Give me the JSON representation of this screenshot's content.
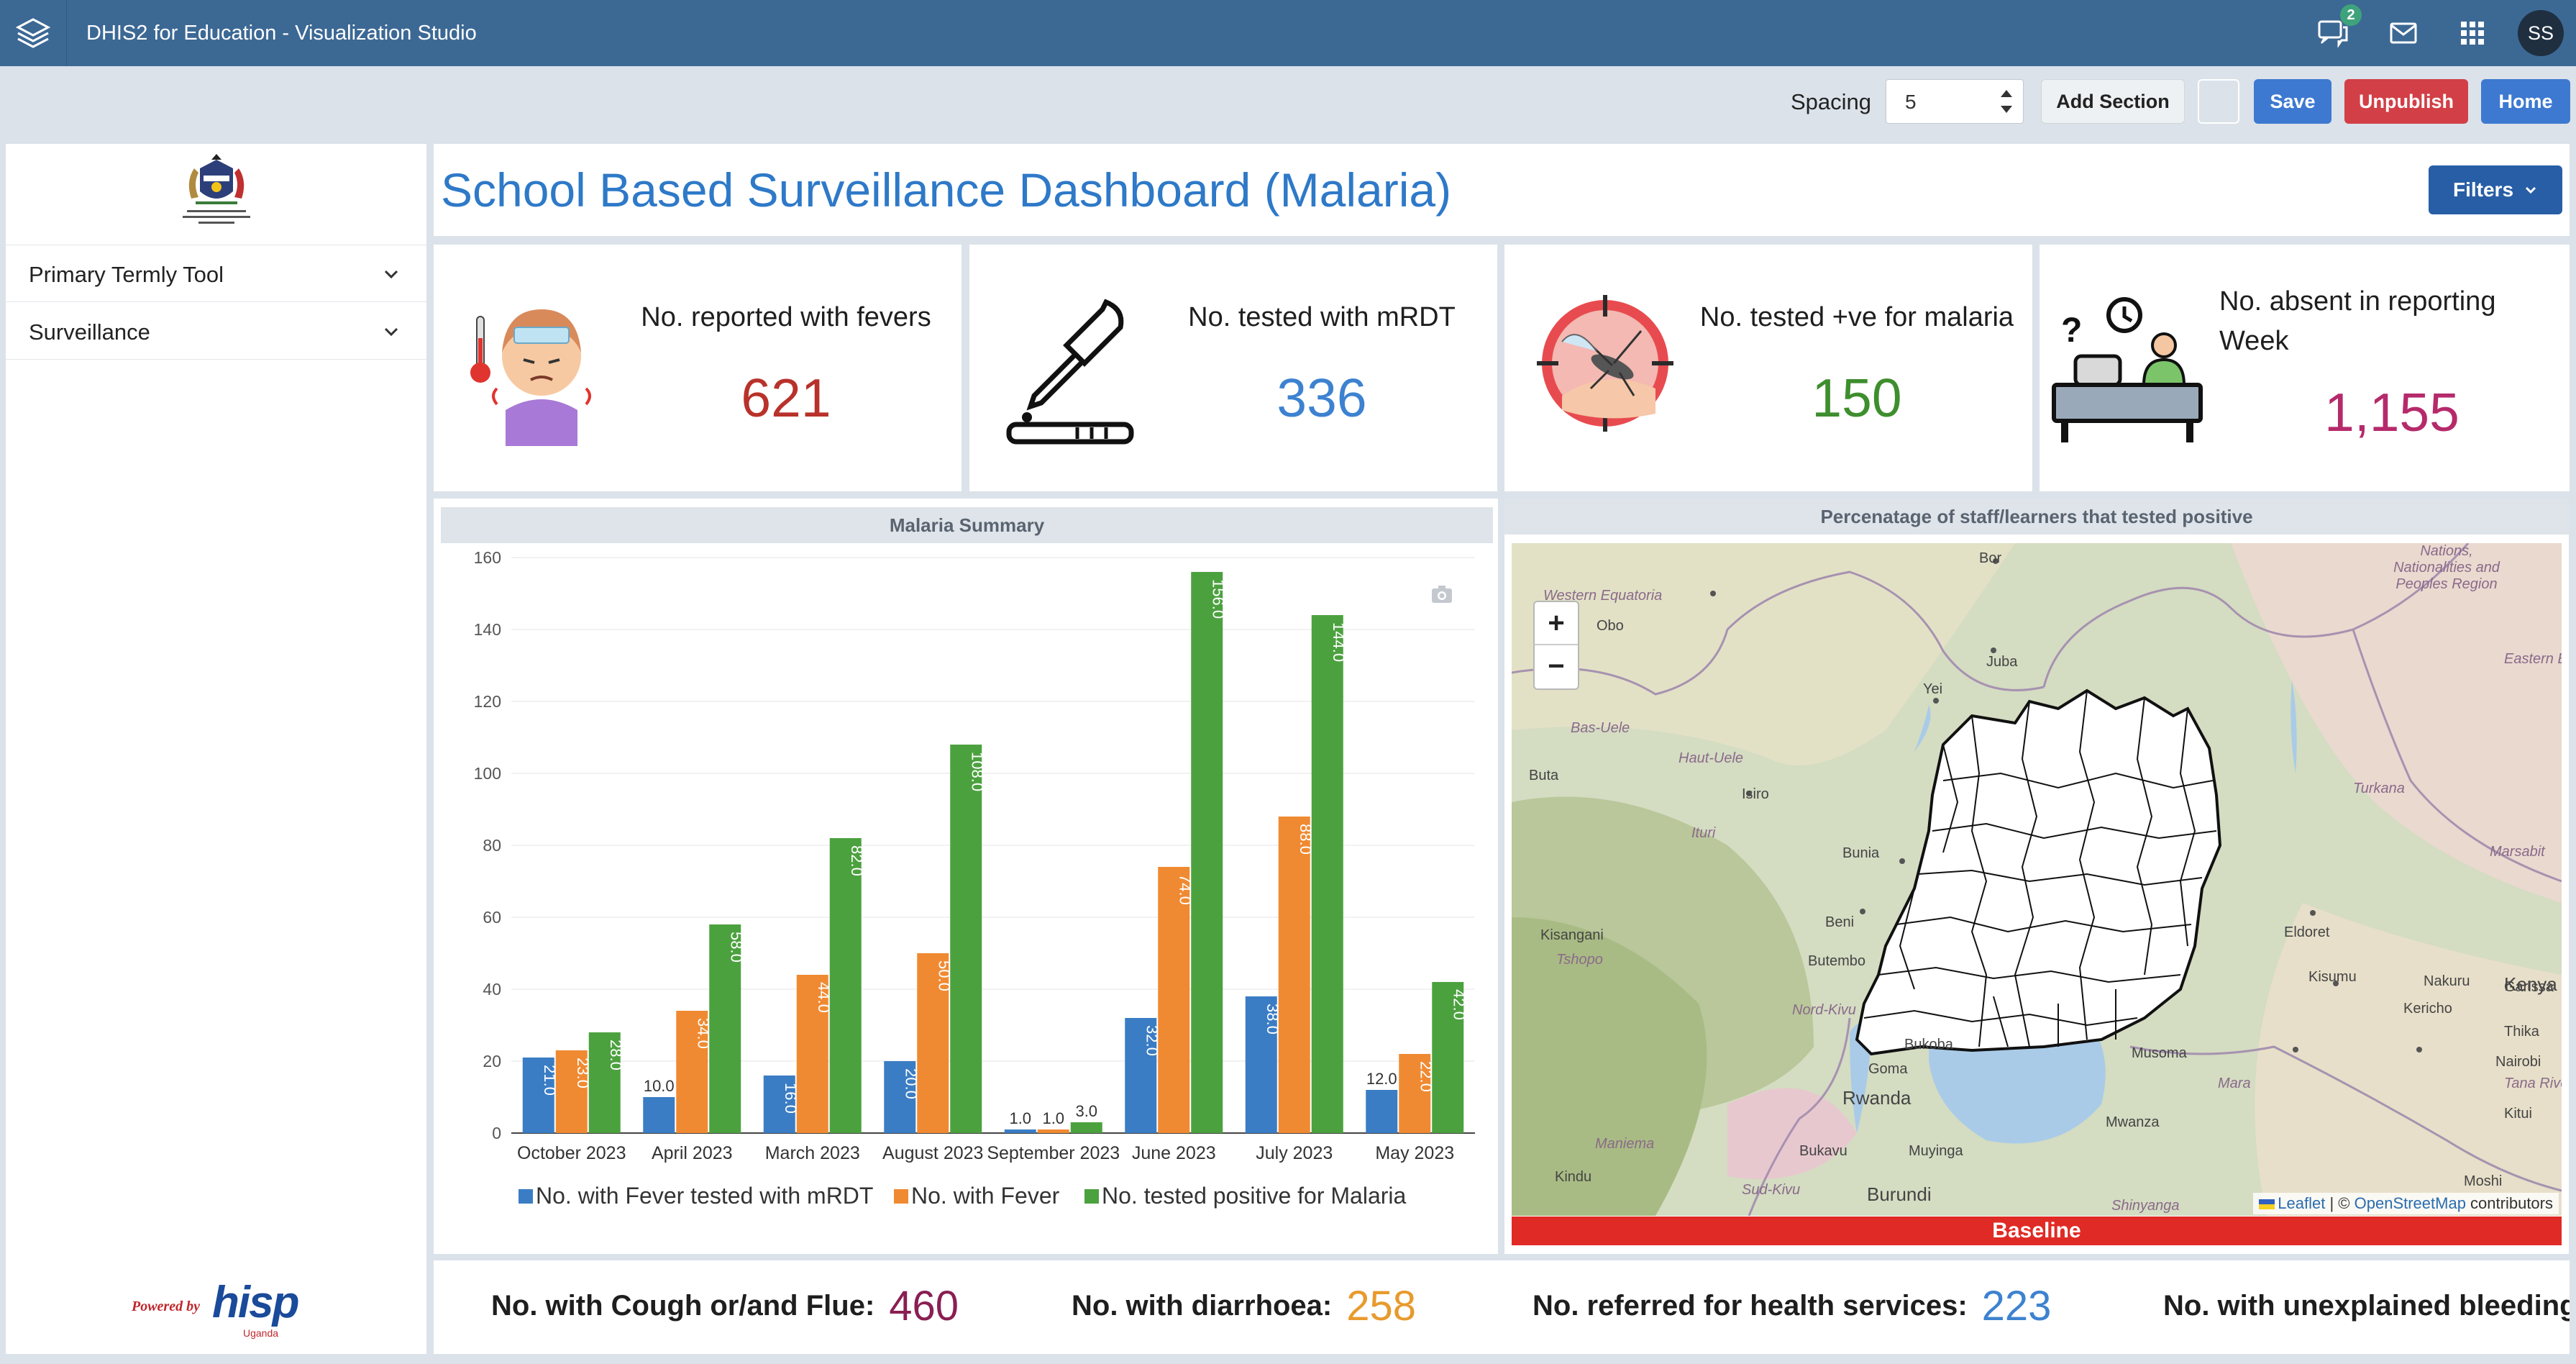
{
  "app": {
    "title": "DHIS2 for Education - Visualization Studio",
    "message_count": "2",
    "user_initials": "SS"
  },
  "toolbar": {
    "spacing_label": "Spacing",
    "spacing_value": "5",
    "add_section": "Add Section",
    "save": "Save",
    "unpublish": "Unpublish",
    "home": "Home"
  },
  "sidebar": {
    "items": [
      {
        "label": "Primary Termly Tool"
      },
      {
        "label": "Surveillance"
      }
    ],
    "powered_by": "Powered by",
    "powered_brand": "hisp",
    "powered_sub": "Uganda"
  },
  "dashboard": {
    "title": "School Based Surveillance Dashboard (Malaria)",
    "filters": "Filters"
  },
  "kpis": [
    {
      "label": "No. reported with fevers",
      "value": "621",
      "color": "#b8322b",
      "icon": "fever-child-icon"
    },
    {
      "label": "No. tested with mRDT",
      "value": "336",
      "color": "#3d82d0",
      "icon": "dropper-test-icon"
    },
    {
      "label": "No. tested +ve for malaria",
      "value": "150",
      "color": "#3e8e2e",
      "icon": "mosquito-target-icon"
    },
    {
      "label": "No. absent in reporting Week",
      "value": "1,155",
      "color": "#b52a6a",
      "icon": "empty-desk-icon"
    }
  ],
  "chart_data": {
    "type": "bar",
    "title": "Malaria Summary",
    "categories": [
      "October 2023",
      "April 2023",
      "March 2023",
      "August 2023",
      "September 2023",
      "June 2023",
      "July 2023",
      "May 2023"
    ],
    "series": [
      {
        "name": "No. with Fever tested with mRDT",
        "color": "#3a7dc4",
        "values": [
          21,
          10,
          16,
          20,
          1,
          32,
          38,
          12
        ]
      },
      {
        "name": "No. with Fever",
        "color": "#f08a32",
        "values": [
          23,
          34,
          44,
          50,
          1,
          74,
          88,
          22
        ]
      },
      {
        "name": "No. tested positive for Malaria",
        "color": "#4ca13f",
        "values": [
          28,
          58,
          82,
          108,
          3,
          156,
          144,
          42
        ]
      }
    ],
    "ylim": [
      0,
      160
    ],
    "yticks": [
      0,
      20,
      40,
      60,
      80,
      100,
      120,
      140,
      160
    ],
    "grid": true,
    "legend": "bottom"
  },
  "map": {
    "title": "Percenatage of staff/learners that tested positive",
    "zoom_in": "+",
    "zoom_out": "−",
    "attribution_leaflet": "Leaflet",
    "attribution_sep": " | © ",
    "attribution_osm": "OpenStreetMap",
    "attribution_tail": " contributors",
    "baseline": "Baseline",
    "labels": [
      {
        "text": "Bor",
        "kind": "town"
      },
      {
        "text": "Nations, Nationalities and Peoples Region",
        "kind": "region"
      },
      {
        "text": "Western Equatoria",
        "kind": "region"
      },
      {
        "text": "Obo",
        "kind": "town"
      },
      {
        "text": "Juba",
        "kind": "town"
      },
      {
        "text": "Eastern Equatoria",
        "kind": "region"
      },
      {
        "text": "Yei",
        "kind": "town"
      },
      {
        "text": "Bas-Uele",
        "kind": "region"
      },
      {
        "text": "Haut-Uele",
        "kind": "region"
      },
      {
        "text": "Buta",
        "kind": "town"
      },
      {
        "text": "Isiro",
        "kind": "town"
      },
      {
        "text": "Turkana",
        "kind": "region"
      },
      {
        "text": "Ituri",
        "kind": "region"
      },
      {
        "text": "Bunia",
        "kind": "town"
      },
      {
        "text": "Marsabit",
        "kind": "region"
      },
      {
        "text": "Kisangani",
        "kind": "town"
      },
      {
        "text": "Tshopo",
        "kind": "region"
      },
      {
        "text": "Beni",
        "kind": "town"
      },
      {
        "text": "Eldoret",
        "kind": "town"
      },
      {
        "text": "Butembo",
        "kind": "town"
      },
      {
        "text": "Kisumu",
        "kind": "town"
      },
      {
        "text": "Nakuru",
        "kind": "town"
      },
      {
        "text": "Kenya",
        "kind": "country"
      },
      {
        "text": "Garissa",
        "kind": "town"
      },
      {
        "text": "Nord-Kivu",
        "kind": "region"
      },
      {
        "text": "Kericho",
        "kind": "town"
      },
      {
        "text": "Thika",
        "kind": "town"
      },
      {
        "text": "Bukoba",
        "kind": "town"
      },
      {
        "text": "Goma",
        "kind": "town"
      },
      {
        "text": "Musoma",
        "kind": "town"
      },
      {
        "text": "Nairobi",
        "kind": "town"
      },
      {
        "text": "Mara",
        "kind": "region"
      },
      {
        "text": "Tana River",
        "kind": "region"
      },
      {
        "text": "Rwanda",
        "kind": "country"
      },
      {
        "text": "Mwanza",
        "kind": "town"
      },
      {
        "text": "Kitui",
        "kind": "town"
      },
      {
        "text": "Maniema",
        "kind": "region"
      },
      {
        "text": "Bukavu",
        "kind": "town"
      },
      {
        "text": "Muyinga",
        "kind": "town"
      },
      {
        "text": "Kindu",
        "kind": "town"
      },
      {
        "text": "Sud-Kivu",
        "kind": "region"
      },
      {
        "text": "Burundi",
        "kind": "country"
      },
      {
        "text": "Shinyanga",
        "kind": "region"
      },
      {
        "text": "Moshi",
        "kind": "town"
      }
    ]
  },
  "bottom_stats": [
    {
      "label": "No. with Cough or/and Flue:",
      "value": "460",
      "color": "#8a1e52"
    },
    {
      "label": "No. with diarrhoea:",
      "value": "258",
      "color": "#e89a2c"
    },
    {
      "label": "No. referred for health services:",
      "value": "223",
      "color": "#3d82d0"
    },
    {
      "label": "No. with unexplained bleeding",
      "value": "",
      "color": "#333333"
    }
  ]
}
